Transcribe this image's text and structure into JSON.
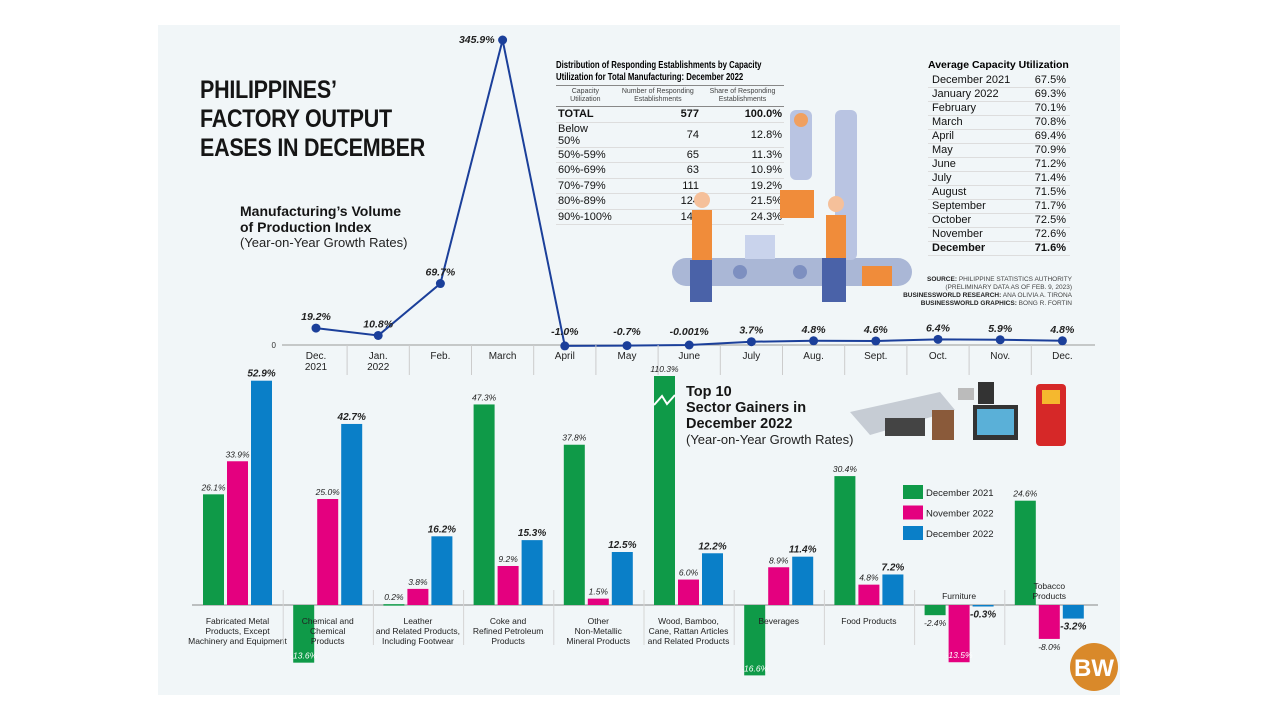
{
  "title": [
    "PHILIPPINES’",
    "FACTORY OUTPUT",
    "EASES IN DECEMBER"
  ],
  "colors": {
    "background": "#f1f6f8",
    "line": "#1b3f9a",
    "dec2021": "#0f9a48",
    "nov2022": "#e4007f",
    "dec2022": "#0a7fc8",
    "logo": "#d9892a"
  },
  "line_chart_heading": {
    "title_line1": "Manufacturing’s Volume",
    "title_line2": "of Production Index",
    "subtitle": "(Year-on-Year Growth Rates)"
  },
  "distribution_table": {
    "title_line1": "Distribution of Responding Establishments by Capacity",
    "title_line2": "Utilization for Total Manufacturing: December 2022",
    "headers": [
      "Capacity Utilization",
      "Number of Responding Establishments",
      "Share of Responding Establishments"
    ],
    "rows": [
      [
        "TOTAL",
        "577",
        "100.0%"
      ],
      [
        "Below 50%",
        "74",
        "12.8%"
      ],
      [
        "50%-59%",
        "65",
        "11.3%"
      ],
      [
        "60%-69%",
        "63",
        "10.9%"
      ],
      [
        "70%-79%",
        "111",
        "19.2%"
      ],
      [
        "80%-89%",
        "124",
        "21.5%"
      ],
      [
        "90%-100%",
        "140",
        "24.3%"
      ]
    ]
  },
  "average_capacity": {
    "title": "Average Capacity Utilization",
    "rows": [
      [
        "December 2021",
        "67.5%"
      ],
      [
        "January 2022",
        "69.3%"
      ],
      [
        "February",
        "70.1%"
      ],
      [
        "March",
        "70.8%"
      ],
      [
        "April",
        "69.4%"
      ],
      [
        "May",
        "70.9%"
      ],
      [
        "June",
        "71.2%"
      ],
      [
        "July",
        "71.4%"
      ],
      [
        "August",
        "71.5%"
      ],
      [
        "September",
        "71.7%"
      ],
      [
        "October",
        "72.5%"
      ],
      [
        "November",
        "72.6%"
      ],
      [
        "December",
        "71.6%"
      ]
    ]
  },
  "credits": {
    "source_label": "SOURCE:",
    "source": "PHILIPPINE STATISTICS AUTHORITY",
    "note": "(PRELIMINARY DATA AS OF FEB. 9, 2023)",
    "research_label": "BUSINESSWORLD RESEARCH:",
    "research": "ANA OLIVIA A. TIRONA",
    "graphics_label": "BUSINESSWORLD GRAPHICS:",
    "graphics": "BONG R. FORTIN"
  },
  "bar_heading": {
    "line1": "Top 10",
    "line2": "Sector Gainers in",
    "line3": "December 2022",
    "subtitle": "(Year-on-Year Growth Rates)"
  },
  "logo_text": "BW",
  "chart_data": [
    {
      "type": "line",
      "title": "Manufacturing’s Volume of Production Index",
      "subtitle": "(Year-on-Year Growth Rates)",
      "y_zero_label": "0",
      "categories": [
        "Dec.\n2021",
        "Jan.\n2022",
        "Feb.",
        "March",
        "April",
        "May",
        "June",
        "July",
        "Aug.",
        "Sept.",
        "Oct.",
        "Nov.",
        "Dec."
      ],
      "values": [
        19.2,
        10.8,
        69.7,
        345.9,
        -1.0,
        -0.7,
        -0.001,
        3.7,
        4.8,
        4.6,
        6.4,
        5.9,
        4.8
      ],
      "labels": [
        "19.2%",
        "10.8%",
        "69.7%",
        "345.9%",
        "-1.0%",
        "-0.7%",
        "-0.001%",
        "3.7%",
        "4.8%",
        "4.6%",
        "6.4%",
        "5.9%",
        "4.8%"
      ],
      "ylim": [
        -5,
        350
      ],
      "grid": false
    },
    {
      "type": "bar",
      "title": "Top 10 Sector Gainers in December 2022",
      "subtitle": "(Year-on-Year Growth Rates)",
      "categories": [
        "Fabricated Metal\nProducts, Except\nMachinery and Equipment",
        "Chemical and\nChemical\nProducts",
        "Leather\nand Related Products,\nIncluding Footwear",
        "Coke and\nRefined Petroleum\nProducts",
        "Other\nNon-Metallic\nMineral Products",
        "Wood, Bamboo,\nCane, Rattan Articles\nand Related Products",
        "Beverages",
        "Food Products",
        "Furniture",
        "Tobacco\nProducts"
      ],
      "series": [
        {
          "name": "December 2021",
          "values": [
            26.1,
            -13.6,
            0.2,
            47.3,
            37.8,
            110.3,
            -16.6,
            30.4,
            -2.4,
            24.6
          ]
        },
        {
          "name": "November 2022",
          "values": [
            33.9,
            25.0,
            3.8,
            9.2,
            1.5,
            6.0,
            8.9,
            4.8,
            -13.5,
            -8.0
          ]
        },
        {
          "name": "December 2022",
          "values": [
            52.9,
            42.7,
            16.2,
            15.3,
            12.5,
            12.2,
            11.4,
            7.2,
            -0.3,
            -3.2
          ]
        }
      ],
      "truncated_bars": [
        "Wood, Bamboo, Cane, Rattan Articles and Related Products / December 2021"
      ],
      "legend_position": "right",
      "grid": false
    }
  ]
}
